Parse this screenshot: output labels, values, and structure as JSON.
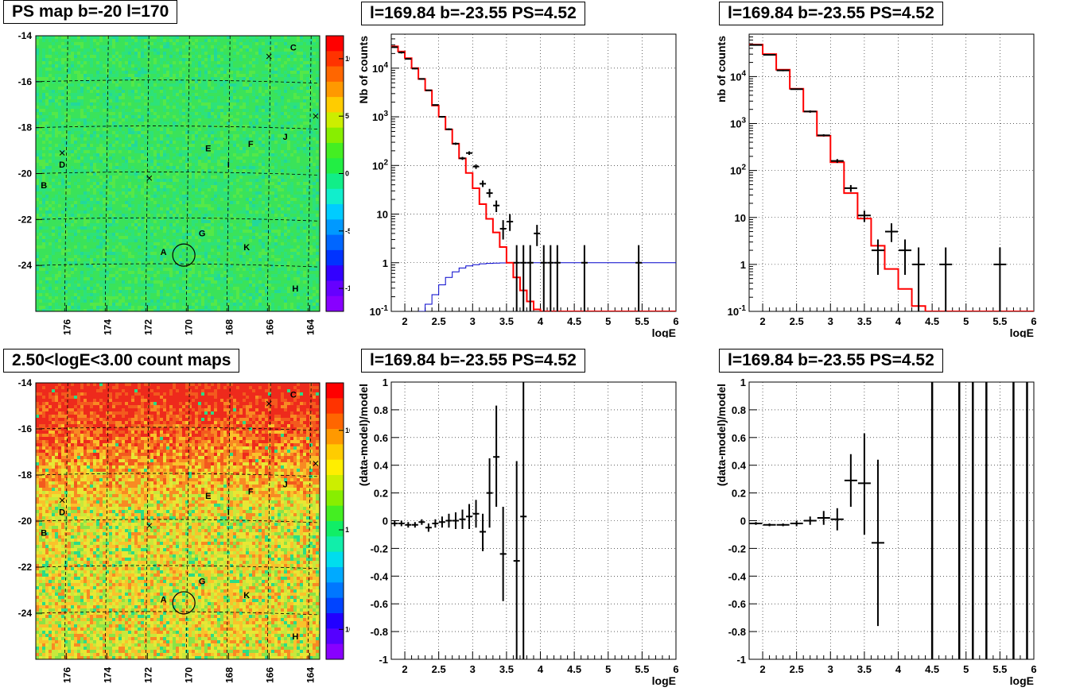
{
  "panels": {
    "p1": {
      "title": "PS map b=-20 l=170"
    },
    "p2": {
      "title": "l=169.84 b=-23.55 PS=4.52"
    },
    "p3": {
      "title": "l=169.84 b=-23.55 PS=4.52"
    },
    "p4": {
      "title": "2.50<logE<3.00 count maps"
    },
    "p5": {
      "title": "l=169.84 b=-23.55 PS=4.52"
    },
    "p6": {
      "title": "l=169.84 b=-23.55 PS=4.52"
    }
  },
  "colors": {
    "model": "#ff0000",
    "background_model": "#0000cc",
    "data": "#000000"
  },
  "chart_data": [
    {
      "id": "p1",
      "type": "heatmap",
      "title": "PS map b=-20 l=170",
      "x_ticks": [
        "176",
        "174",
        "172",
        "170",
        "168",
        "166",
        "164"
      ],
      "y_ticks": [
        "-14",
        "-16",
        "-18",
        "-20",
        "-22",
        "-24"
      ],
      "xlim": [
        177.5,
        163.5
      ],
      "ylim": [
        -26,
        -14
      ],
      "colorbar_ticks": [
        "10",
        "5",
        "0",
        "-5",
        "-10"
      ],
      "colorbar_range": [
        -12,
        12
      ],
      "source_labels": [
        {
          "label": "C",
          "l": 164.8,
          "b": -14.5
        },
        {
          "label": "D",
          "l": 176.2,
          "b": -19.6
        },
        {
          "label": "B",
          "l": 177.1,
          "b": -20.5
        },
        {
          "label": "E",
          "l": 169.0,
          "b": -18.9
        },
        {
          "label": "F",
          "l": 166.9,
          "b": -18.7
        },
        {
          "label": "J",
          "l": 165.2,
          "b": -18.4
        },
        {
          "label": "I",
          "l": 168.0,
          "b": -19.6
        },
        {
          "label": "G",
          "l": 169.3,
          "b": -22.6
        },
        {
          "label": "A",
          "l": 171.2,
          "b": -23.4
        },
        {
          "label": "K",
          "l": 167.1,
          "b": -23.2
        },
        {
          "label": "H",
          "l": 164.7,
          "b": -25.0
        }
      ],
      "crosses": [
        {
          "l": 176.2,
          "b": -19.1
        },
        {
          "l": 171.9,
          "b": -20.2
        },
        {
          "l": 166.0,
          "b": -14.9
        },
        {
          "l": 163.7,
          "b": -17.5
        }
      ],
      "circle": {
        "l": 170.2,
        "b": -23.55
      }
    },
    {
      "id": "p2",
      "type": "line",
      "title": "l=169.84 b=-23.55 PS=4.52",
      "xlabel": "logE",
      "ylabel": "Nb of counts",
      "log_y": true,
      "xlim": [
        1.8,
        6
      ],
      "ylim": [
        0.1,
        50000
      ],
      "x_ticks": [
        "2",
        "2.5",
        "3",
        "3.5",
        "4",
        "4.5",
        "5",
        "5.5",
        "6"
      ],
      "y_ticks": [
        "10^{-1}",
        "1",
        "10",
        "10^{2}",
        "10^{3}",
        "10^{4}"
      ],
      "series": [
        {
          "kind": "model-step",
          "x_edges": [
            1.8,
            1.9,
            2.0,
            2.1,
            2.2,
            2.3,
            2.4,
            2.5,
            2.6,
            2.7,
            2.8,
            2.9,
            3.0,
            3.1,
            3.2,
            3.3,
            3.4,
            3.5,
            3.6,
            3.7,
            3.8,
            3.9,
            4.0,
            4.1,
            4.2,
            6.0
          ],
          "values": [
            28000,
            22000,
            16000,
            10000,
            6000,
            3500,
            1700,
            1000,
            550,
            280,
            140,
            70,
            34,
            16,
            8,
            4.2,
            2.1,
            1.0,
            0.5,
            0.27,
            0.16,
            0.11,
            0.1,
            0.1,
            0.1
          ]
        },
        {
          "kind": "background-step",
          "x_edges": [
            2.2,
            2.3,
            2.4,
            2.5,
            2.6,
            2.7,
            2.8,
            2.9,
            3.0,
            3.1,
            3.2,
            3.3,
            3.4,
            3.5,
            3.6,
            3.7,
            3.8,
            3.9,
            4.0,
            6.0
          ],
          "values": [
            0.1,
            0.14,
            0.22,
            0.35,
            0.5,
            0.65,
            0.78,
            0.86,
            0.91,
            0.95,
            0.97,
            0.98,
            0.99,
            1.0,
            1.0,
            1.0,
            1.0,
            1.0,
            1.0
          ]
        },
        {
          "kind": "data",
          "points": [
            {
              "x": 1.85,
              "y": 27000,
              "lo": 26000,
              "hi": 28000
            },
            {
              "x": 1.95,
              "y": 21000,
              "lo": 20000,
              "hi": 22000
            },
            {
              "x": 2.05,
              "y": 15500,
              "lo": 15000,
              "hi": 16000
            },
            {
              "x": 2.15,
              "y": 9800,
              "lo": 9500,
              "hi": 10100
            },
            {
              "x": 2.25,
              "y": 6000,
              "lo": 5800,
              "hi": 6200
            },
            {
              "x": 2.35,
              "y": 3500,
              "lo": 3400,
              "hi": 3600
            },
            {
              "x": 2.45,
              "y": 1750,
              "lo": 1700,
              "hi": 1800
            },
            {
              "x": 2.55,
              "y": 1000,
              "lo": 960,
              "hi": 1040
            },
            {
              "x": 2.65,
              "y": 555,
              "lo": 530,
              "hi": 580
            },
            {
              "x": 2.75,
              "y": 280,
              "lo": 265,
              "hi": 295
            },
            {
              "x": 2.85,
              "y": 140,
              "lo": 130,
              "hi": 150
            },
            {
              "x": 2.95,
              "y": 180,
              "lo": 165,
              "hi": 195
            },
            {
              "x": 3.05,
              "y": 95,
              "lo": 85,
              "hi": 105
            },
            {
              "x": 3.15,
              "y": 42,
              "lo": 36,
              "hi": 49
            },
            {
              "x": 3.25,
              "y": 27,
              "lo": 22,
              "hi": 33
            },
            {
              "x": 3.35,
              "y": 15,
              "lo": 11,
              "hi": 19
            },
            {
              "x": 3.45,
              "y": 5,
              "lo": 3,
              "hi": 7.5
            },
            {
              "x": 3.55,
              "y": 7,
              "lo": 4.5,
              "hi": 10
            },
            {
              "x": 3.65,
              "y": 1,
              "lo": 0.1,
              "hi": 2.3
            },
            {
              "x": 3.75,
              "y": 1,
              "lo": 0.1,
              "hi": 2.3
            },
            {
              "x": 3.85,
              "y": 1,
              "lo": 0.1,
              "hi": 2.3
            },
            {
              "x": 3.95,
              "y": 4,
              "lo": 2.2,
              "hi": 6
            },
            {
              "x": 4.05,
              "y": 1,
              "lo": 0.1,
              "hi": 2.3
            },
            {
              "x": 4.15,
              "y": 1,
              "lo": 0.1,
              "hi": 2.3
            },
            {
              "x": 4.25,
              "y": 1,
              "lo": 0.1,
              "hi": 2.3
            },
            {
              "x": 4.65,
              "y": 1,
              "lo": 0.1,
              "hi": 2.3
            },
            {
              "x": 5.45,
              "y": 1,
              "lo": 0.1,
              "hi": 2.3
            }
          ]
        }
      ]
    },
    {
      "id": "p3",
      "type": "line",
      "title": "l=169.84 b=-23.55 PS=4.52",
      "xlabel": "logE",
      "ylabel": "nb of counts",
      "log_y": true,
      "xlim": [
        1.8,
        6
      ],
      "ylim": [
        0.1,
        80000
      ],
      "x_ticks": [
        "2",
        "2.5",
        "3",
        "3.5",
        "4",
        "4.5",
        "5",
        "5.5",
        "6"
      ],
      "y_ticks": [
        "10^{-1}",
        "1",
        "10",
        "10^{2}",
        "10^{3}",
        "10^{4}"
      ],
      "series": [
        {
          "kind": "model-step",
          "x_edges": [
            1.8,
            2.0,
            2.2,
            2.4,
            2.6,
            2.8,
            3.0,
            3.2,
            3.4,
            3.6,
            3.8,
            4.0,
            4.2,
            4.4,
            6.0
          ],
          "values": [
            48000,
            30000,
            14000,
            5500,
            1800,
            550,
            150,
            33,
            9.5,
            2.5,
            0.8,
            0.3,
            0.13,
            0.1
          ]
        },
        {
          "kind": "data",
          "points": [
            {
              "x": 1.9,
              "y": 47000,
              "lo": 45500,
              "hi": 48500
            },
            {
              "x": 2.1,
              "y": 29000,
              "lo": 28000,
              "hi": 30000
            },
            {
              "x": 2.3,
              "y": 13500,
              "lo": 13000,
              "hi": 14000
            },
            {
              "x": 2.5,
              "y": 5400,
              "lo": 5200,
              "hi": 5600
            },
            {
              "x": 2.7,
              "y": 1800,
              "lo": 1700,
              "hi": 1900
            },
            {
              "x": 2.9,
              "y": 560,
              "lo": 530,
              "hi": 590
            },
            {
              "x": 3.1,
              "y": 160,
              "lo": 145,
              "hi": 175
            },
            {
              "x": 3.3,
              "y": 42,
              "lo": 35,
              "hi": 49
            },
            {
              "x": 3.5,
              "y": 11,
              "lo": 8,
              "hi": 14
            },
            {
              "x": 3.7,
              "y": 2,
              "lo": 0.6,
              "hi": 3.4
            },
            {
              "x": 3.9,
              "y": 5,
              "lo": 3,
              "hi": 7.5
            },
            {
              "x": 4.1,
              "y": 2,
              "lo": 0.6,
              "hi": 3.4
            },
            {
              "x": 4.3,
              "y": 1,
              "lo": 0.1,
              "hi": 2.3
            },
            {
              "x": 4.7,
              "y": 1,
              "lo": 0.1,
              "hi": 2.3
            },
            {
              "x": 5.5,
              "y": 1,
              "lo": 0.1,
              "hi": 2.3
            }
          ]
        }
      ]
    },
    {
      "id": "p4",
      "type": "heatmap",
      "title": "2.50<logE<3.00 count maps",
      "x_ticks": [
        "176",
        "174",
        "172",
        "170",
        "168",
        "166",
        "164"
      ],
      "y_ticks": [
        "-14",
        "-16",
        "-18",
        "-20",
        "-22",
        "-24"
      ],
      "xlim": [
        177.5,
        163.5
      ],
      "ylim": [
        -26,
        -14
      ],
      "colorbar_ticks": [
        "10",
        "1",
        "10^{-1}"
      ],
      "colorbar_log_range": [
        0.05,
        30
      ],
      "source_labels": [
        {
          "label": "C",
          "l": 164.8,
          "b": -14.5
        },
        {
          "label": "D",
          "l": 176.2,
          "b": -19.6
        },
        {
          "label": "B",
          "l": 177.1,
          "b": -20.5
        },
        {
          "label": "E",
          "l": 169.0,
          "b": -18.9
        },
        {
          "label": "F",
          "l": 166.9,
          "b": -18.7
        },
        {
          "label": "J",
          "l": 165.2,
          "b": -18.4
        },
        {
          "label": "I",
          "l": 168.0,
          "b": -19.6
        },
        {
          "label": "G",
          "l": 169.3,
          "b": -22.6
        },
        {
          "label": "A",
          "l": 171.2,
          "b": -23.4
        },
        {
          "label": "K",
          "l": 167.1,
          "b": -23.2
        },
        {
          "label": "H",
          "l": 164.7,
          "b": -25.0
        }
      ],
      "crosses": [
        {
          "l": 176.2,
          "b": -19.1
        },
        {
          "l": 171.9,
          "b": -20.2
        },
        {
          "l": 166.0,
          "b": -14.9
        },
        {
          "l": 163.7,
          "b": -17.5
        }
      ],
      "circle": {
        "l": 170.2,
        "b": -23.55
      }
    },
    {
      "id": "p5",
      "type": "scatter",
      "title": "l=169.84 b=-23.55 PS=4.52",
      "xlabel": "logE",
      "ylabel": "(data-model)/model",
      "xlim": [
        1.8,
        6
      ],
      "ylim": [
        -1,
        1
      ],
      "x_ticks": [
        "2",
        "2.5",
        "3",
        "3.5",
        "4",
        "4.5",
        "5",
        "5.5",
        "6"
      ],
      "y_ticks": [
        "-1",
        "-0.8",
        "-0.6",
        "-0.4",
        "-0.2",
        "0",
        "0.2",
        "0.4",
        "0.6",
        "0.8",
        "1"
      ],
      "points": [
        {
          "x": 1.85,
          "y": -0.02,
          "lo": -0.04,
          "hi": 0.0
        },
        {
          "x": 1.95,
          "y": -0.02,
          "lo": -0.04,
          "hi": 0.0
        },
        {
          "x": 2.05,
          "y": -0.03,
          "lo": -0.05,
          "hi": -0.01
        },
        {
          "x": 2.15,
          "y": -0.03,
          "lo": -0.05,
          "hi": -0.01
        },
        {
          "x": 2.25,
          "y": -0.01,
          "lo": -0.03,
          "hi": 0.01
        },
        {
          "x": 2.35,
          "y": -0.05,
          "lo": -0.08,
          "hi": -0.02
        },
        {
          "x": 2.45,
          "y": -0.02,
          "lo": -0.05,
          "hi": 0.01
        },
        {
          "x": 2.55,
          "y": -0.01,
          "lo": -0.05,
          "hi": 0.03
        },
        {
          "x": 2.65,
          "y": 0.0,
          "lo": -0.05,
          "hi": 0.05
        },
        {
          "x": 2.75,
          "y": 0.0,
          "lo": -0.06,
          "hi": 0.06
        },
        {
          "x": 2.85,
          "y": 0.01,
          "lo": -0.06,
          "hi": 0.08
        },
        {
          "x": 2.95,
          "y": 0.03,
          "lo": -0.06,
          "hi": 0.12
        },
        {
          "x": 3.05,
          "y": 0.05,
          "lo": -0.05,
          "hi": 0.15
        },
        {
          "x": 3.15,
          "y": -0.08,
          "lo": -0.22,
          "hi": 0.05
        },
        {
          "x": 3.25,
          "y": 0.2,
          "lo": -0.05,
          "hi": 0.45
        },
        {
          "x": 3.35,
          "y": 0.46,
          "lo": 0.1,
          "hi": 0.83
        },
        {
          "x": 3.45,
          "y": -0.24,
          "lo": -0.58,
          "hi": 0.1
        },
        {
          "x": 3.65,
          "y": -0.29,
          "lo": -1.0,
          "hi": 0.43
        },
        {
          "x": 3.75,
          "y": 0.03,
          "lo": -1.0,
          "hi": 1.0
        }
      ]
    },
    {
      "id": "p6",
      "type": "scatter",
      "title": "l=169.84 b=-23.55 PS=4.52",
      "xlabel": "logE",
      "ylabel": "(data-model)/model",
      "xlim": [
        1.8,
        6
      ],
      "ylim": [
        -1,
        1
      ],
      "x_ticks": [
        "2",
        "2.5",
        "3",
        "3.5",
        "4",
        "4.5",
        "5",
        "5.5",
        "6"
      ],
      "y_ticks": [
        "-1",
        "-0.8",
        "-0.6",
        "-0.4",
        "-0.2",
        "0",
        "0.2",
        "0.4",
        "0.6",
        "0.8",
        "1"
      ],
      "points": [
        {
          "x": 1.9,
          "y": -0.02,
          "lo": -0.03,
          "hi": -0.01
        },
        {
          "x": 2.1,
          "y": -0.03,
          "lo": -0.04,
          "hi": -0.02
        },
        {
          "x": 2.3,
          "y": -0.03,
          "lo": -0.04,
          "hi": -0.02
        },
        {
          "x": 2.5,
          "y": -0.02,
          "lo": -0.04,
          "hi": 0.0
        },
        {
          "x": 2.7,
          "y": 0.0,
          "lo": -0.03,
          "hi": 0.03
        },
        {
          "x": 2.9,
          "y": 0.02,
          "lo": -0.03,
          "hi": 0.07
        },
        {
          "x": 3.1,
          "y": 0.01,
          "lo": -0.07,
          "hi": 0.09
        },
        {
          "x": 3.3,
          "y": 0.29,
          "lo": 0.1,
          "hi": 0.48
        },
        {
          "x": 3.5,
          "y": 0.27,
          "lo": -0.1,
          "hi": 0.63
        },
        {
          "x": 3.7,
          "y": -0.16,
          "lo": -0.76,
          "hi": 0.44
        }
      ],
      "vertical_bars_x": [
        4.5,
        4.9,
        5.1,
        5.3,
        5.7,
        5.9
      ]
    }
  ]
}
